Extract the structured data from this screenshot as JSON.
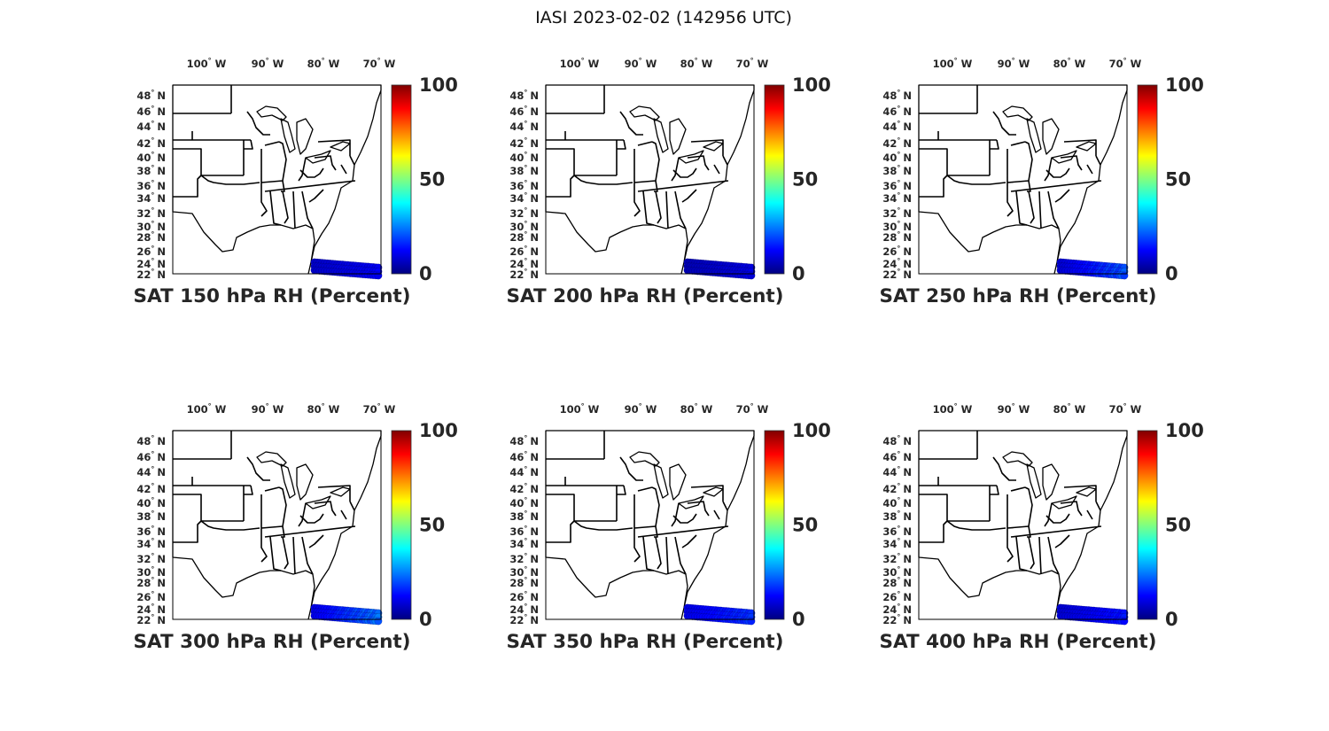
{
  "figure_title": "IASI 2023-02-02 (142956 UTC)",
  "map": {
    "lon_ticks": [
      "100",
      "90",
      "80",
      "70"
    ],
    "lon_unit": "W",
    "lat_ticks": [
      "48",
      "46",
      "44",
      "42",
      "40",
      "38",
      "36",
      "34",
      "32",
      "30",
      "28",
      "26",
      "24",
      "22"
    ],
    "lat_unit": "N",
    "extent": {
      "lon": [
        -105,
        -67
      ],
      "lat": [
        22,
        50
      ]
    }
  },
  "colorbar": {
    "colormap": "jet",
    "ticks": [
      "100",
      "50",
      "0"
    ],
    "range": [
      0,
      100
    ],
    "colors": [
      "#000080",
      "#0000ff",
      "#0080ff",
      "#00ffff",
      "#80ff80",
      "#ffff00",
      "#ff8000",
      "#ff0000",
      "#800000"
    ]
  },
  "panels": [
    {
      "title": "SAT 150 hPa RH (Percent)",
      "swath_rh": [
        7,
        12
      ]
    },
    {
      "title": "SAT 200 hPa RH (Percent)",
      "swath_rh": [
        5,
        10
      ]
    },
    {
      "title": "SAT 250 hPa RH (Percent)",
      "swath_rh": [
        8,
        22
      ]
    },
    {
      "title": "SAT 300 hPa RH (Percent)",
      "swath_rh": [
        10,
        25
      ]
    },
    {
      "title": "SAT 350 hPa RH (Percent)",
      "swath_rh": [
        10,
        18
      ]
    },
    {
      "title": "SAT 400 hPa RH (Percent)",
      "swath_rh": [
        8,
        15
      ]
    }
  ]
}
